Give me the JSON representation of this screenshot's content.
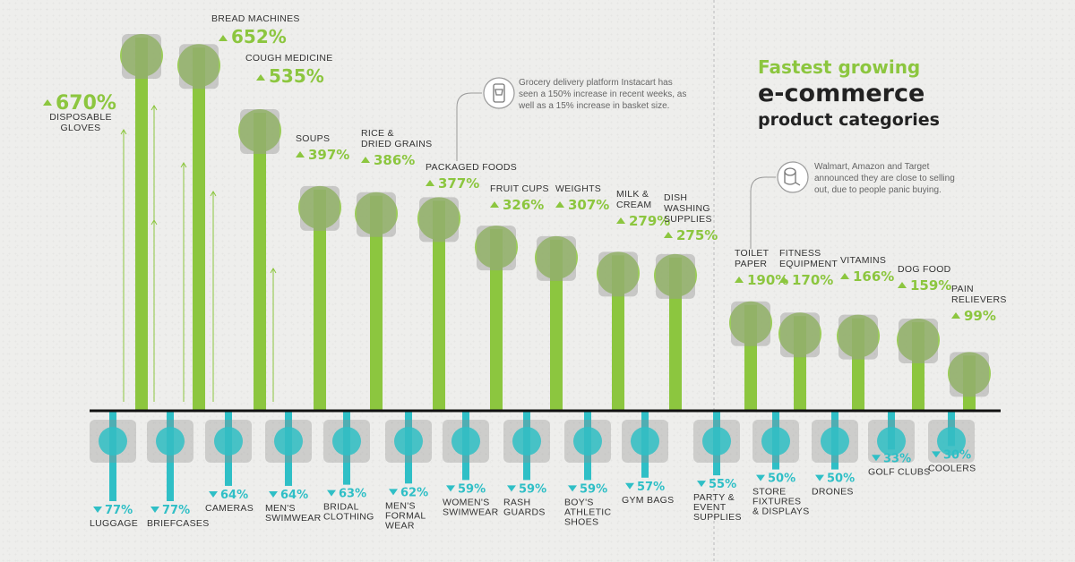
{
  "title": {
    "line1": "Fastest growing",
    "line2": "e-commerce",
    "line3": "product categories"
  },
  "notes": {
    "instacart": [
      "Grocery delivery platform Instacart has",
      "seen a 150% increase in recent weeks, as",
      "well as a 15% increase in basket size."
    ],
    "toilet_paper": [
      "Walmart, Amazon and Target",
      "announced they are close to selling",
      "out, due to people panic buying."
    ]
  },
  "colors": {
    "growth": "#8cc63f",
    "decline": "#2fbfc6",
    "axis": "#111111",
    "text": "#333333"
  },
  "chart_data": {
    "type": "bar",
    "axis": "zero line in the middle; growth bars rise above, declines drop below",
    "growth": [
      {
        "label": "DISPOSABLE GLOVES",
        "value": 670,
        "value_text": "670%",
        "icon": "disposable-gloves-icon"
      },
      {
        "label": "BREAD MACHINES",
        "value": 652,
        "value_text": "652%",
        "icon": "bread-machine-icon"
      },
      {
        "label": "COUGH MEDICINE",
        "value": 535,
        "value_text": "535%",
        "icon": "cough-medicine-icon"
      },
      {
        "label": "SOUPS",
        "value": 397,
        "value_text": "397%",
        "icon": "soup-can-icon"
      },
      {
        "label": "RICE & DRIED GRAINS",
        "value": 386,
        "value_text": "386%",
        "icon": "rice-bag-icon"
      },
      {
        "label": "PACKAGED FOODS",
        "value": 377,
        "value_text": "377%",
        "icon": "packaged-food-icon"
      },
      {
        "label": "FRUIT CUPS",
        "value": 326,
        "value_text": "326%",
        "icon": "fruit-cup-icon"
      },
      {
        "label": "WEIGHTS",
        "value": 307,
        "value_text": "307%",
        "icon": "dumbbell-icon"
      },
      {
        "label": "MILK & CREAM",
        "value": 279,
        "value_text": "279%",
        "icon": "milk-carton-icon"
      },
      {
        "label": "DISH WASHING SUPPLIES",
        "value": 275,
        "value_text": "275%",
        "icon": "dish-soap-icon"
      },
      {
        "label": "TOILET PAPER",
        "value": 190,
        "value_text": "190%",
        "icon": "toilet-paper-icon"
      },
      {
        "label": "FITNESS EQUIPMENT",
        "value": 170,
        "value_text": "170%",
        "icon": "jump-rope-icon"
      },
      {
        "label": "VITAMINS",
        "value": 166,
        "value_text": "166%",
        "icon": "vitamins-icon"
      },
      {
        "label": "DOG FOOD",
        "value": 159,
        "value_text": "159%",
        "icon": "dog-food-icon"
      },
      {
        "label": "PAIN RELIEVERS",
        "value": 99,
        "value_text": "99%",
        "icon": "pain-reliever-icon"
      }
    ],
    "decline": [
      {
        "label": "LUGGAGE",
        "value": -77,
        "value_text": "77%",
        "icon": "luggage-icon"
      },
      {
        "label": "BRIEFCASES",
        "value": -77,
        "value_text": "77%",
        "icon": "briefcase-icon"
      },
      {
        "label": "CAMERAS",
        "value": -64,
        "value_text": "64%",
        "icon": "camera-icon"
      },
      {
        "label": "MEN'S SWIMWEAR",
        "value": -64,
        "value_text": "64%",
        "icon": "mens-swimwear-icon"
      },
      {
        "label": "BRIDAL CLOTHING",
        "value": -63,
        "value_text": "63%",
        "icon": "bridal-dress-icon"
      },
      {
        "label": "MEN'S FORMAL WEAR",
        "value": -62,
        "value_text": "62%",
        "icon": "bow-tie-icon"
      },
      {
        "label": "WOMEN'S SWIMWEAR",
        "value": -59,
        "value_text": "59%",
        "icon": "womens-swimwear-icon"
      },
      {
        "label": "RASH GUARDS",
        "value": -59,
        "value_text": "59%",
        "icon": "rash-guard-icon"
      },
      {
        "label": "BOY'S ATHLETIC SHOES",
        "value": -59,
        "value_text": "59%",
        "icon": "athletic-shoe-icon"
      },
      {
        "label": "GYM BAGS",
        "value": -57,
        "value_text": "57%",
        "icon": "gym-bag-icon"
      },
      {
        "label": "PARTY & EVENT SUPPLIES",
        "value": -55,
        "value_text": "55%",
        "icon": "party-hat-icon"
      },
      {
        "label": "STORE FIXTURES & DISPLAYS",
        "value": -50,
        "value_text": "50%",
        "icon": "open-sign-icon"
      },
      {
        "label": "DRONES",
        "value": -50,
        "value_text": "50%",
        "icon": "drone-icon"
      },
      {
        "label": "GOLF CLUBS",
        "value": -33,
        "value_text": "33%",
        "icon": "golf-club-icon"
      },
      {
        "label": "COOLERS",
        "value": -30,
        "value_text": "30%",
        "icon": "cooler-icon"
      }
    ]
  }
}
